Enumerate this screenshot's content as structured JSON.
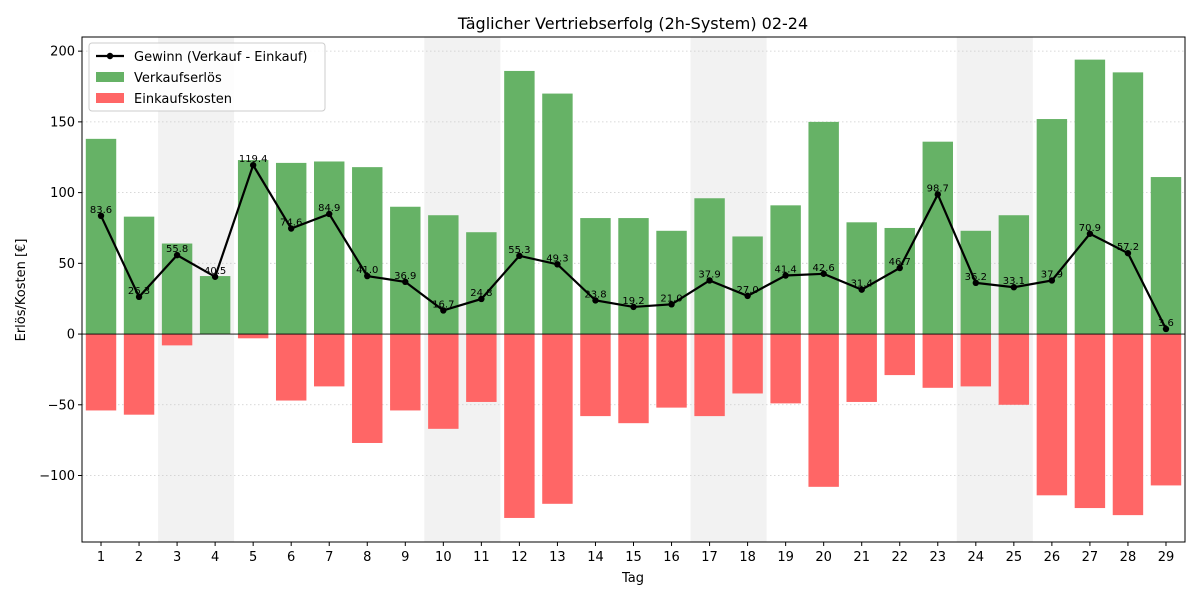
{
  "chart_data": {
    "type": "bar",
    "title": "Täglicher Vertriebserfolg (2h-System) 02-24",
    "xlabel": "Tag",
    "ylabel": "Erlös/Kosten [€]",
    "categories": [
      "1",
      "2",
      "3",
      "4",
      "5",
      "6",
      "7",
      "8",
      "9",
      "10",
      "11",
      "12",
      "13",
      "14",
      "15",
      "16",
      "17",
      "18",
      "19",
      "20",
      "21",
      "22",
      "23",
      "24",
      "25",
      "26",
      "27",
      "28",
      "29"
    ],
    "ylim": [
      -147,
      210
    ],
    "yticks": [
      -100,
      -50,
      0,
      50,
      100,
      150,
      200
    ],
    "ytick_labels": [
      "−100",
      "−50",
      "0",
      "50",
      "100",
      "150",
      "200"
    ],
    "grid": "horizontal dotted",
    "legend_position": "top-left",
    "weekend_days": [
      3,
      4,
      10,
      11,
      17,
      18,
      24,
      25
    ],
    "series": [
      {
        "name": "Verkaufserlös",
        "kind": "bar",
        "color": "#66b266",
        "values": [
          138,
          83,
          64,
          41,
          123,
          121,
          122,
          118,
          90,
          84,
          72,
          186,
          170,
          82,
          82,
          73,
          96,
          69,
          91,
          150,
          79,
          75,
          136,
          73,
          84,
          152,
          194,
          185,
          111
        ]
      },
      {
        "name": "Einkaufskosten",
        "kind": "bar",
        "color": "#ff6666",
        "values": [
          -54,
          -57,
          -8,
          0,
          -3,
          -47,
          -37,
          -77,
          -54,
          -67,
          -48,
          -130,
          -120,
          -58,
          -63,
          -52,
          -58,
          -42,
          -49,
          -108,
          -48,
          -29,
          -38,
          -37,
          -50,
          -114,
          -123,
          -128,
          -107
        ]
      },
      {
        "name": "Gewinn (Verkauf - Einkauf)",
        "kind": "line",
        "color": "#000000",
        "values": [
          83.6,
          26.3,
          55.8,
          40.5,
          119.4,
          74.6,
          84.9,
          41.0,
          36.9,
          16.7,
          24.8,
          55.3,
          49.3,
          23.8,
          19.2,
          21.0,
          37.9,
          27.0,
          41.4,
          42.6,
          31.4,
          46.7,
          98.7,
          36.2,
          33.1,
          37.9,
          70.9,
          57.2,
          3.6
        ],
        "labels": [
          "83.6",
          "26.3",
          "55.8",
          "40.5",
          "119.4",
          "74.6",
          "84.9",
          "41.0",
          "36.9",
          "16.7",
          "24.8",
          "55.3",
          "49.3",
          "23.8",
          "19.2",
          "21.0",
          "37.9",
          "27.0",
          "41.4",
          "42.6",
          "31.4",
          "46.7",
          "98.7",
          "36.2",
          "33.1",
          "37.9",
          "70.9",
          "57.2",
          "3.6"
        ]
      }
    ]
  }
}
